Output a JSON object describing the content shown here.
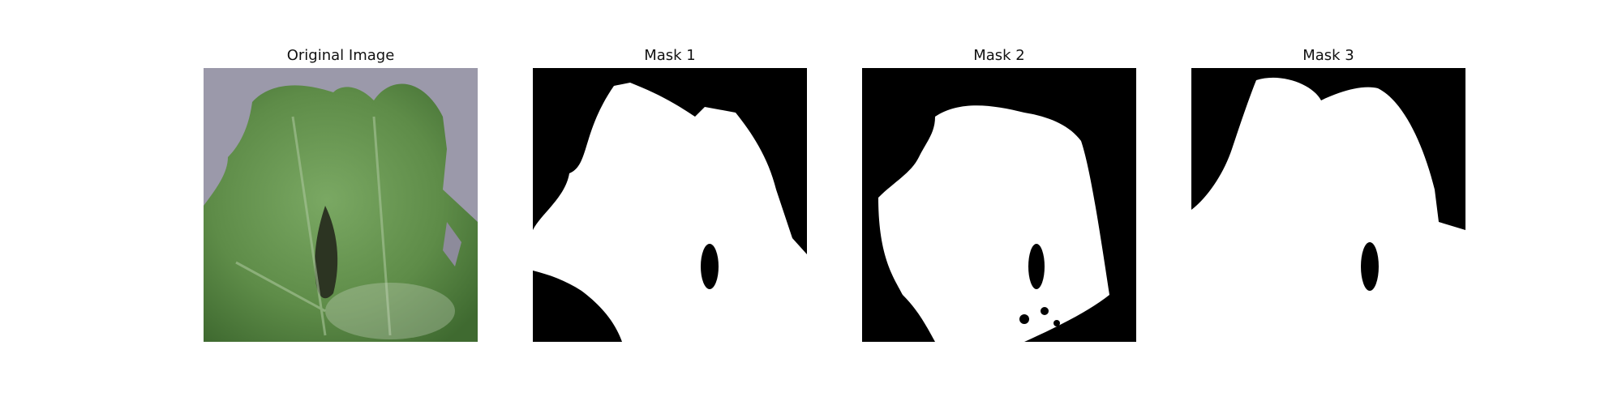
{
  "figure": {
    "panels": [
      {
        "title": "Original Image"
      },
      {
        "title": "Mask 1"
      },
      {
        "title": "Mask 2"
      },
      {
        "title": "Mask 3"
      }
    ]
  },
  "colors": {
    "background": "#ffffff",
    "mask_foreground": "#ffffff",
    "mask_background": "#000000",
    "leaf_green": "#5f8f48",
    "backdrop_gray": "#9a98a8"
  }
}
